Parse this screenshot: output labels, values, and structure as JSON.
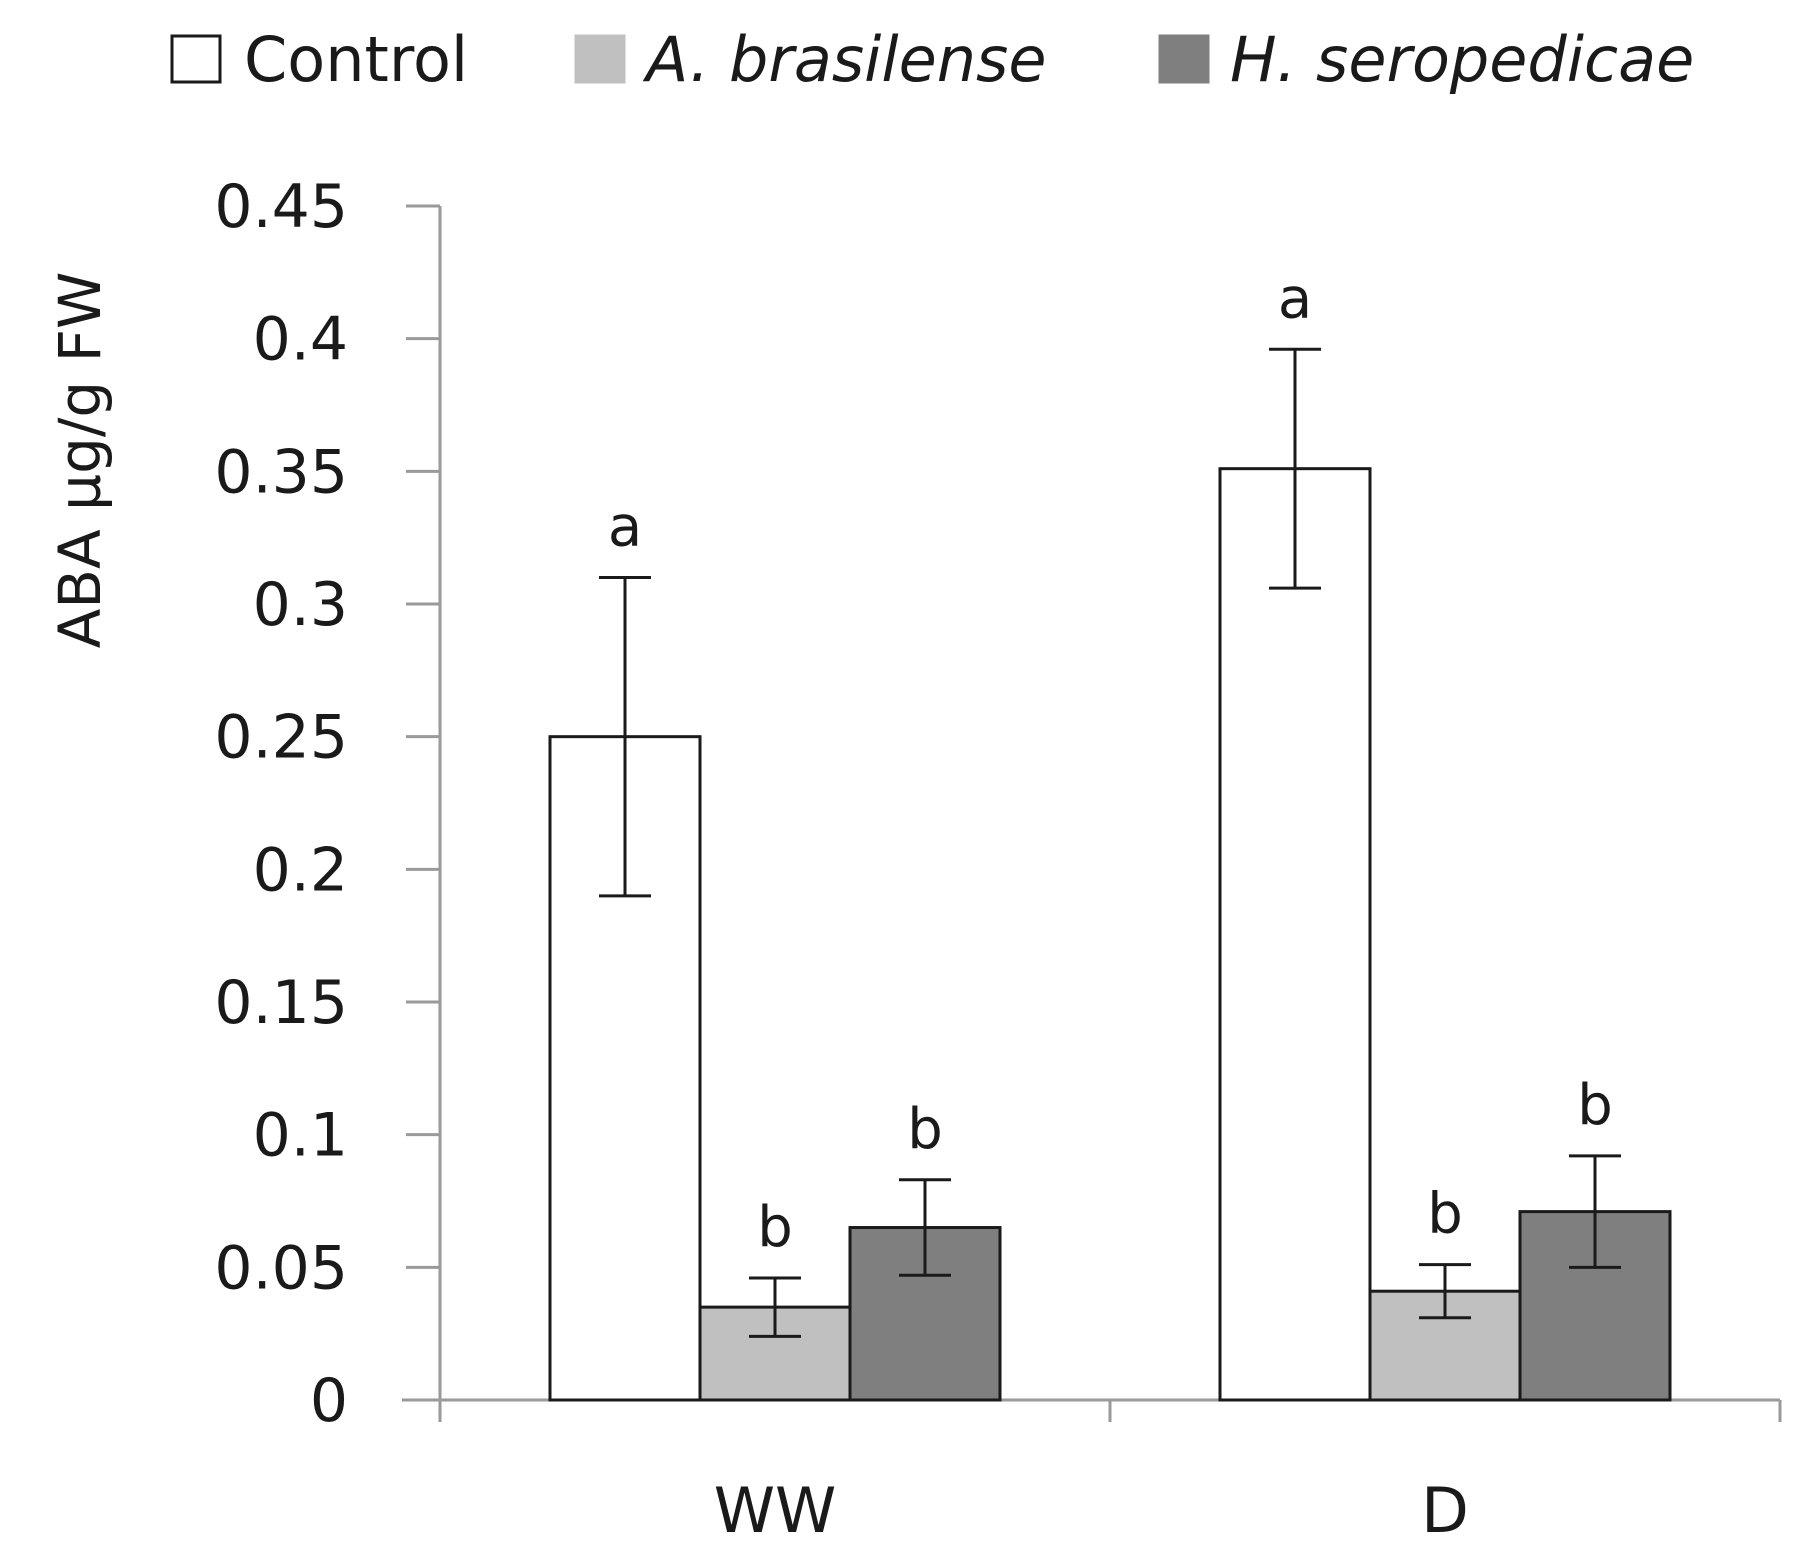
{
  "chart_data": {
    "type": "bar",
    "title": "",
    "xlabel": "",
    "ylabel": "ABA µg/g FW",
    "ylim": [
      0,
      0.45
    ],
    "yticks": [
      0,
      0.05,
      0.1,
      0.15,
      0.2,
      0.25,
      0.3,
      0.35,
      0.4,
      0.45
    ],
    "ytick_labels": [
      "0",
      "0.05",
      "0.1",
      "0.15",
      "0.2",
      "0.25",
      "0.3",
      "0.35",
      "0.4",
      "0.45"
    ],
    "categories": [
      "WW",
      "D"
    ],
    "legend_position": "top",
    "grid": false,
    "series": [
      {
        "name": "Control",
        "italic": false,
        "fill": "#ffffff",
        "values": [
          0.25,
          0.351
        ],
        "errors": [
          0.06,
          0.045
        ],
        "labels": [
          "a",
          "a"
        ]
      },
      {
        "name": "A. brasilense",
        "italic": true,
        "fill": "#c0c0c0",
        "values": [
          0.035,
          0.041
        ],
        "errors": [
          0.011,
          0.01
        ],
        "labels": [
          "b",
          "b"
        ]
      },
      {
        "name": "H. seropedicae",
        "italic": true,
        "fill": "#7f7f7f",
        "values": [
          0.065,
          0.071
        ],
        "errors": [
          0.018,
          0.021
        ],
        "labels": [
          "b",
          "b"
        ]
      }
    ]
  }
}
